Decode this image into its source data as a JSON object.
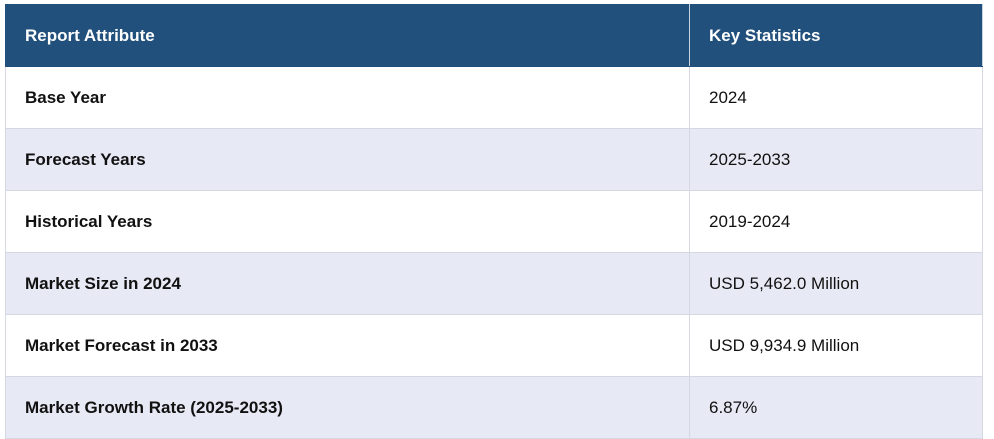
{
  "table": {
    "header": [
      "Report Attribute",
      "Key Statistics"
    ],
    "rows": [
      [
        "Base Year",
        "2024"
      ],
      [
        "Forecast Years",
        "2025-2033"
      ],
      [
        "Historical Years",
        "2019-2024"
      ],
      [
        "Market Size in 2024",
        "USD 5,462.0 Million"
      ],
      [
        "Market Forecast in 2033",
        "USD 9,934.9 Million"
      ],
      [
        "Market Growth Rate (2025-2033)",
        "6.87%"
      ]
    ]
  }
}
